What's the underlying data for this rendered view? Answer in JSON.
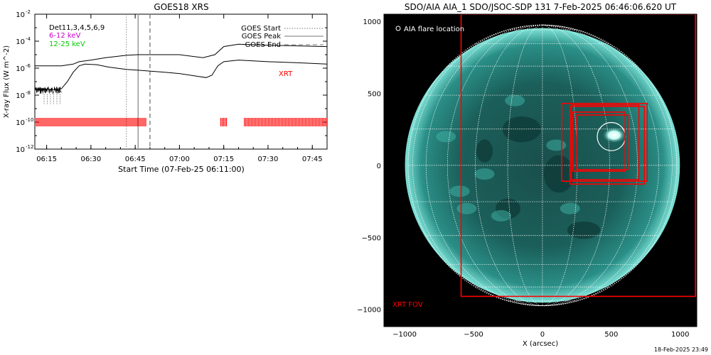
{
  "footer_timestamp": "18-Feb-2025 23:49",
  "chart_data": [
    {
      "type": "line",
      "title": "GOES18 XRS",
      "xlabel": "Start Time (07-Feb-25 06:11:00)",
      "ylabel": "X-ray Flux (W m^-2)",
      "y_scale": "log",
      "ylim": [
        1e-12,
        0.01
      ],
      "xlim": [
        "06:11",
        "07:50"
      ],
      "x_tick_labels": [
        "06:15",
        "06:30",
        "06:45",
        "07:00",
        "07:15",
        "07:30",
        "07:45"
      ],
      "y_tick_labels": [
        {
          "base": "10",
          "exp": "-12"
        },
        {
          "base": "10",
          "exp": "-10"
        },
        {
          "base": "10",
          "exp": "-8"
        },
        {
          "base": "10",
          "exp": "-6"
        },
        {
          "base": "10",
          "exp": "-4"
        },
        {
          "base": "10",
          "exp": "-2"
        }
      ],
      "energy_legend": [
        {
          "label": "Det11,3,4,5,6,9",
          "color": "#000000"
        },
        {
          "label": "6-12 keV",
          "color": "#cc00cc"
        },
        {
          "label": "12-25 keV",
          "color": "#00cc00"
        }
      ],
      "marker_legend": [
        {
          "label": "GOES Start",
          "style": "dotted"
        },
        {
          "label": "GOES Peak",
          "style": "solid"
        },
        {
          "label": "GOES End",
          "style": "dashed"
        }
      ],
      "markers": {
        "start": "06:42",
        "peak": "06:46",
        "end": "06:50"
      },
      "series": [
        {
          "color": "#000000",
          "x": [
            "06:11",
            "06:20",
            "06:24",
            "06:26",
            "06:30",
            "06:35",
            "06:42",
            "06:46",
            "06:55",
            "07:00",
            "07:08",
            "07:12",
            "07:15",
            "07:20",
            "07:30",
            "07:40",
            "07:50"
          ],
          "values": [
            1.5e-06,
            1.5e-06,
            2e-06,
            3e-06,
            4e-06,
            6e-06,
            9e-06,
            1e-05,
            1e-05,
            1e-05,
            6e-06,
            1e-05,
            4e-05,
            6e-05,
            5e-05,
            4.5e-05,
            4e-05
          ]
        },
        {
          "color": "#000000",
          "x": [
            "06:11",
            "06:18",
            "06:20",
            "06:22",
            "06:24",
            "06:26",
            "06:28",
            "06:32",
            "06:36",
            "06:42",
            "06:46",
            "06:55",
            "07:00",
            "07:06",
            "07:09",
            "07:11",
            "07:13",
            "07:15",
            "07:20",
            "07:30",
            "07:40",
            "07:50"
          ],
          "values": [
            3e-08,
            2.5e-08,
            3e-08,
            1e-07,
            5e-07,
            1.5e-06,
            2e-06,
            1.8e-06,
            1.2e-06,
            8e-07,
            7e-07,
            5e-07,
            4e-07,
            2.5e-07,
            2e-07,
            3e-07,
            1.5e-06,
            3e-06,
            4e-06,
            3e-06,
            2.5e-06,
            2e-06
          ]
        }
      ],
      "annotations": [
        {
          "text": "XRT",
          "color": "#ff0000"
        }
      ],
      "xrt_coverage": [
        [
          "06:11",
          "06:49"
        ],
        [
          "07:14",
          "07:16"
        ],
        [
          "07:22",
          "07:50"
        ]
      ]
    },
    {
      "type": "image",
      "title": "SDO/AIA AIA_1 SDO/JSOC-SDP 131  7-Feb-2025 06:46:06.620 UT",
      "xlabel": "X (arcsec)",
      "xlim": [
        -1150,
        1120
      ],
      "ylim": [
        -1120,
        1050
      ],
      "x_ticks": [
        -1000,
        -500,
        0,
        500,
        1000
      ],
      "y_ticks": [
        -1000,
        -500,
        0,
        500,
        1000
      ],
      "x_tick_labels": [
        "−1000",
        "−500",
        "0",
        "500",
        "1000"
      ],
      "y_tick_labels": [
        "−1000",
        "−500",
        "0",
        "500",
        "1000"
      ],
      "solar_radius_arcsec": 975,
      "legend": "AIA flare location",
      "flare_location": {
        "x": 500,
        "y": 200,
        "radius": 100
      },
      "fov_label": "XRT FOV",
      "fov_large": {
        "x1": -590,
        "x2": 1110,
        "y1": -910,
        "y2": 1050
      },
      "fov_boxes": [
        {
          "x1": 140,
          "x2": 760,
          "y1": -110,
          "y2": 430
        },
        {
          "x1": 200,
          "x2": 740,
          "y1": -130,
          "y2": 410
        },
        {
          "x1": 210,
          "x2": 700,
          "y1": -100,
          "y2": 420
        },
        {
          "x1": 220,
          "x2": 600,
          "y1": -40,
          "y2": 370
        },
        {
          "x1": 250,
          "x2": 620,
          "y1": -30,
          "y2": 350
        }
      ],
      "colors": {
        "frame": "#ff0000",
        "grid": "#ffffff",
        "disk": "#0f6e6a"
      }
    }
  ]
}
